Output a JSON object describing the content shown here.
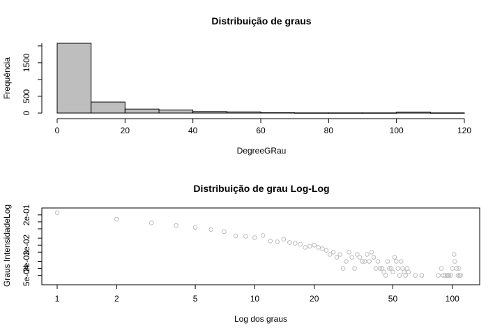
{
  "chart_data": [
    {
      "type": "bar",
      "title": "Distribuição de graus",
      "xlabel": "DegreeGRau",
      "ylabel": "Frequência",
      "bin_edges": [
        0,
        10,
        20,
        30,
        40,
        50,
        60,
        70,
        80,
        90,
        100,
        110,
        120
      ],
      "values": [
        2080,
        330,
        120,
        90,
        45,
        35,
        10,
        5,
        5,
        5,
        30,
        5
      ],
      "xlim": [
        0,
        120
      ],
      "ylim": [
        0,
        2080
      ],
      "xticks": [
        "0",
        "20",
        "40",
        "60",
        "80",
        "100",
        "120"
      ],
      "yticks": [
        "0",
        "500",
        "1500"
      ],
      "bar_color": "#bebebe",
      "grid": false
    },
    {
      "type": "scatter",
      "title": "Distribuição de grau Log-Log",
      "xlabel": "Log dos graus",
      "ylabel": "Graus IntensidadeLog",
      "x_scale": "log",
      "y_scale": "log",
      "xlim": [
        1,
        115
      ],
      "ylim": [
        0.0003,
        0.3
      ],
      "xticks": [
        "1",
        "2",
        "5",
        "10",
        "20",
        "50",
        "100"
      ],
      "yticks": [
        "5e-04",
        "2e-03",
        "1e-02",
        "2e-01"
      ],
      "point_color": "#bdbdbd",
      "grid": false,
      "x": [
        1,
        2,
        3,
        4,
        5,
        6,
        7,
        8,
        9,
        10,
        11,
        12,
        13,
        14,
        15,
        16,
        17,
        18,
        19,
        20,
        21,
        22,
        23,
        24,
        25,
        26,
        27,
        28,
        29,
        30,
        31,
        32,
        33,
        34,
        35,
        36,
        37,
        38,
        39,
        40,
        41,
        42,
        43,
        44,
        45,
        46,
        47,
        48,
        49,
        50,
        51,
        52,
        53,
        54,
        55,
        56,
        57,
        58,
        59,
        60,
        65,
        70,
        85,
        88,
        90,
        92,
        94,
        95,
        96,
        98,
        100,
        102,
        103,
        105,
        107,
        108,
        109,
        110
      ],
      "y": [
        0.25,
        0.13,
        0.09,
        0.07,
        0.058,
        0.047,
        0.038,
        0.025,
        0.024,
        0.021,
        0.026,
        0.015,
        0.014,
        0.018,
        0.013,
        0.012,
        0.011,
        0.008,
        0.009,
        0.01,
        0.008,
        0.007,
        0.006,
        0.004,
        0.005,
        0.003,
        0.004,
        0.001,
        0.002,
        0.005,
        0.003,
        0.001,
        0.004,
        0.003,
        0.002,
        0.002,
        0.004,
        0.002,
        0.005,
        0.003,
        0.001,
        0.002,
        0.001,
        0.001,
        0.0007,
        0.0005,
        0.002,
        0.001,
        0.001,
        0.0007,
        0.003,
        0.002,
        0.001,
        0.0005,
        0.002,
        0.001,
        0.0007,
        0.0005,
        0.001,
        0.0007,
        0.0005,
        0.0005,
        0.0005,
        0.001,
        0.0005,
        0.0005,
        0.0005,
        0.0005,
        0.0005,
        0.0005,
        0.001,
        0.004,
        0.002,
        0.001,
        0.0005,
        0.001,
        0.0005,
        0.0005
      ]
    }
  ]
}
